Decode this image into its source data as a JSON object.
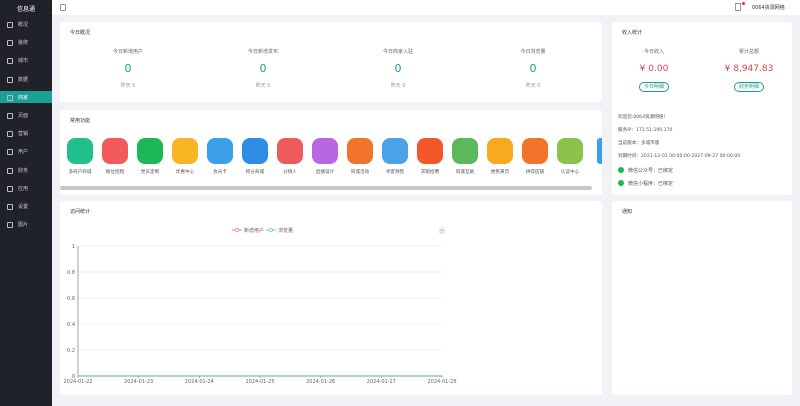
{
  "sidebar": {
    "brand": "信息通",
    "menu": [
      "概况",
      "装修",
      "城市",
      "数据",
      "商家",
      "页面",
      "营销",
      "用户",
      "财务",
      "应用",
      "设置",
      "图片"
    ],
    "active": 4
  },
  "header": {
    "user": "0064资源网络"
  },
  "today_overview": {
    "title": "今日概况",
    "stats": [
      {
        "label": "今日新增用户",
        "value": 0,
        "yesterday": "昨天 0"
      },
      {
        "label": "今日新增发布",
        "value": 0,
        "yesterday": "昨天 0"
      },
      {
        "label": "今日商家入驻",
        "value": 0,
        "yesterday": "昨天 0"
      },
      {
        "label": "今日浏览量",
        "value": 0,
        "yesterday": "昨天 0"
      }
    ]
  },
  "income": {
    "title": "收入统计",
    "items": [
      {
        "label": "今日收入",
        "amount": "¥ 0.00",
        "button": "今日明细"
      },
      {
        "label": "累计总额",
        "amount": "¥ 8,947.83",
        "button": "财务明细"
      }
    ],
    "info": [
      "欢迎您:0064资源网络!",
      "服务IP：171.51.190.170",
      "当前版本：多城市版",
      "到期时间：2021-12-01 00:00:00-2027-09-27 00:00:00"
    ],
    "bindings": [
      "微信公众号：已绑定",
      "微信小程序：已绑定"
    ]
  },
  "common_functions": {
    "title": "常用功能",
    "items": [
      "多商户商城",
      "摊位招租",
      "党员定制",
      "优惠中心",
      "会员卡",
      "积分商城",
      "分销人",
      "直播设计",
      "同城活动",
      "寻客预售",
      "求职招聘",
      "同城互助",
      "便民黄页",
      "拼得店铺",
      "认证中心"
    ]
  },
  "chart_data": {
    "type": "line",
    "title": "访问统计",
    "x": [
      "2024-01-22",
      "2024-01-23",
      "2024-01-24",
      "2024-01-25",
      "2024-01-26",
      "2024-01-27",
      "2024-01-28"
    ],
    "series": [
      {
        "name": "新增用户",
        "color": "#f25b5b",
        "values": [
          0,
          0,
          0,
          0,
          0,
          0,
          0
        ]
      },
      {
        "name": "浏览量",
        "color": "#3cc878",
        "values": [
          0,
          0,
          0,
          0,
          0,
          0,
          0
        ]
      }
    ],
    "ylim": [
      0,
      1
    ],
    "yticks": [
      0,
      0.2,
      0.4,
      0.6,
      0.8,
      1
    ],
    "grid": true,
    "legend": "top"
  },
  "notice": {
    "title": "通知"
  }
}
